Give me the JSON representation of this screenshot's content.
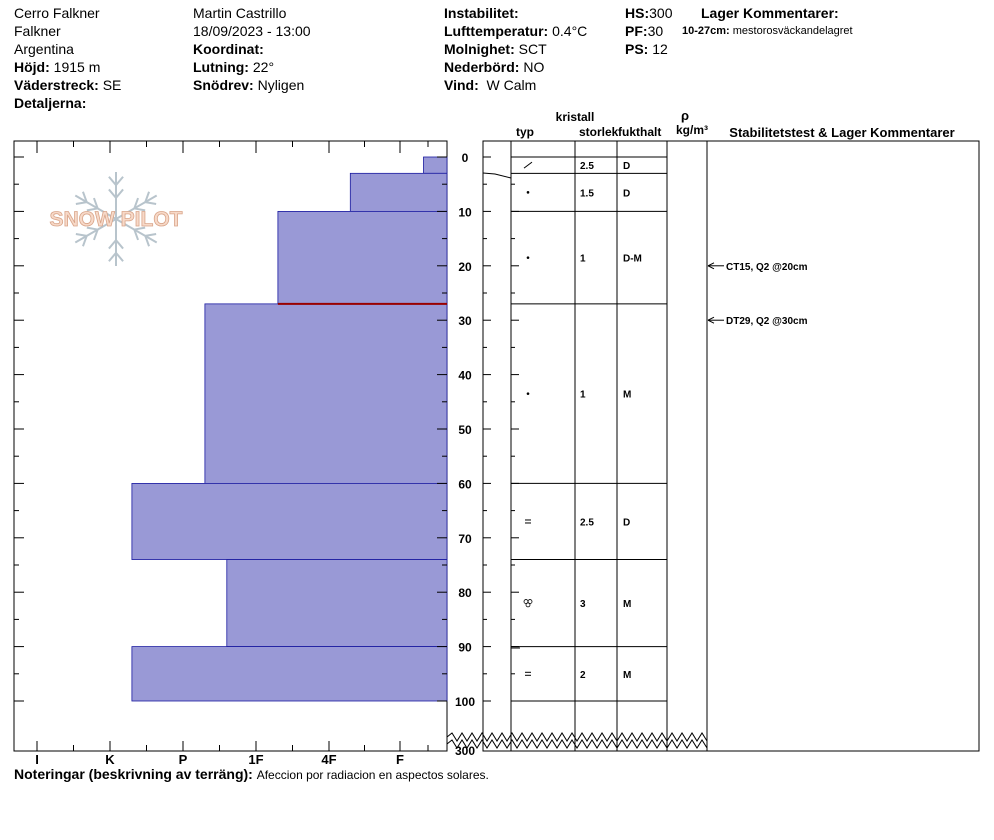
{
  "header": {
    "col1": {
      "location": "Cerro Falkner",
      "sublocation": "Falkner",
      "country": "Argentina",
      "elevation_label": "Höjd:",
      "elevation_value": "1915 m",
      "aspect_label": "Väderstreck:",
      "aspect_value": "SE",
      "details_label": "Detaljerna:"
    },
    "col2": {
      "observer": "Martin Castrillo",
      "datetime": "18/09/2023 - 13:00",
      "coord_label": "Koordinat:",
      "slope_label": "Lutning:",
      "slope_value": "22°",
      "drift_label": "Snödrev:",
      "drift_value": "Nyligen"
    },
    "col3": {
      "instability_label": "Instabilitet:",
      "airtemp_label": "Lufttemperatur:",
      "airtemp_value": "0.4°C",
      "cloud_label": "Molnighet:",
      "cloud_value": "SCT",
      "precip_label": "Nederbörd:",
      "precip_value": "NO",
      "wind_label": "Vind:",
      "wind_value": "W Calm"
    },
    "col4": {
      "hs_label": "HS:",
      "hs_value": "300",
      "pf_label": "PF:",
      "pf_value": "30",
      "ps_label": "PS:",
      "ps_value": "12"
    },
    "col5": {
      "title": "Lager Kommentarer:",
      "comment_depth": "10-27cm:",
      "comment_text": "mestorosväckandelagret"
    }
  },
  "columns": {
    "crystal": "kristall",
    "type": "typ",
    "size": "storlek",
    "moisture": "fukthalt",
    "rho": "ρ",
    "density_unit": "kg/m³",
    "stability": "Stabilitetstest & Lager Kommentarer"
  },
  "notes": {
    "label": "Noteringar (beskrivning av terräng):",
    "value": "Afeccion por radiacion en aspectos solares."
  },
  "logo": {
    "text": "SNOW PILOT"
  },
  "colors": {
    "layer_fill": "#9999d6",
    "layer_stroke": "#1a1aa0",
    "weak_layer": "#990000"
  },
  "chart_data": {
    "type": "bar",
    "hardness_ticks": [
      "I",
      "K",
      "P",
      "1F",
      "4F",
      "F"
    ],
    "depth_ticks": [
      "0",
      "10",
      "20",
      "30",
      "40",
      "50",
      "60",
      "70",
      "80",
      "90",
      "100"
    ],
    "depth_bottom_label": "300",
    "ylim": [
      0,
      110
    ],
    "layers": [
      {
        "top": 0,
        "bottom": 3,
        "hardness": 0.5,
        "type": "slash",
        "size": "2.5",
        "moisture": "D"
      },
      {
        "top": 3,
        "bottom": 10,
        "hardness": 1.7,
        "type": "dot",
        "size": "1.5",
        "moisture": "D"
      },
      {
        "top": 10,
        "bottom": 27,
        "hardness": 2.7,
        "type": "dot",
        "size": "1",
        "moisture": "D-M"
      },
      {
        "top": 27,
        "bottom": 60,
        "hardness": 3.7,
        "type": "dot",
        "size": "1",
        "moisture": "M"
      },
      {
        "top": 60,
        "bottom": 74,
        "hardness": 4.7,
        "type": "equal",
        "size": "2.5",
        "moisture": "D"
      },
      {
        "top": 74,
        "bottom": 90,
        "hardness": 3.4,
        "type": "cluster",
        "size": "3",
        "moisture": "M"
      },
      {
        "top": 90,
        "bottom": 100,
        "hardness": 4.7,
        "type": "equal",
        "size": "2",
        "moisture": "M"
      }
    ],
    "weak_layer_depth": 27,
    "tests": [
      {
        "depth": 20,
        "label": "CT15, Q2 @20cm"
      },
      {
        "depth": 30,
        "label": "DT29, Q2 @30cm"
      }
    ]
  }
}
